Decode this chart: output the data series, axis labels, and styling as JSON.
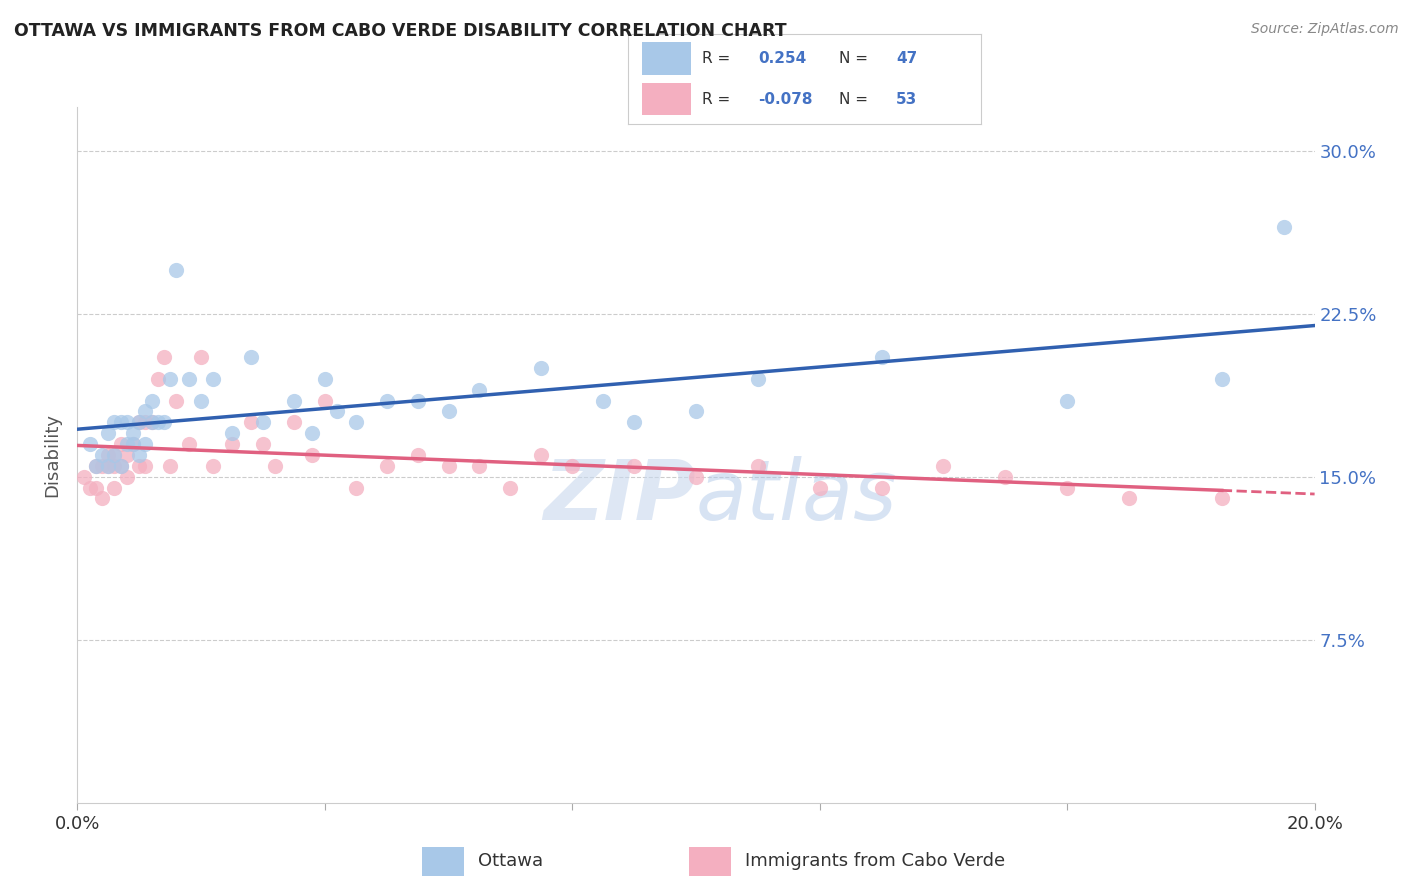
{
  "title": "OTTAWA VS IMMIGRANTS FROM CABO VERDE DISABILITY CORRELATION CHART",
  "source": "Source: ZipAtlas.com",
  "ylabel": "Disability",
  "xlim": [
    0.0,
    0.2
  ],
  "ylim": [
    0.0,
    0.32
  ],
  "yticks": [
    0.075,
    0.15,
    0.225,
    0.3
  ],
  "ytick_labels": [
    "7.5%",
    "15.0%",
    "22.5%",
    "30.0%"
  ],
  "xticks": [
    0.0,
    0.04,
    0.08,
    0.12,
    0.16,
    0.2
  ],
  "ottawa_color": "#a8c8e8",
  "cabo_color": "#f4afc0",
  "trend_ottawa_color": "#3060b0",
  "trend_cabo_color": "#e06080",
  "R_ottawa": 0.254,
  "N_ottawa": 47,
  "R_cabo": -0.078,
  "N_cabo": 53,
  "ottawa_x": [
    0.002,
    0.003,
    0.004,
    0.005,
    0.005,
    0.006,
    0.006,
    0.007,
    0.007,
    0.008,
    0.008,
    0.009,
    0.009,
    0.01,
    0.01,
    0.011,
    0.011,
    0.012,
    0.012,
    0.013,
    0.014,
    0.015,
    0.016,
    0.018,
    0.02,
    0.022,
    0.025,
    0.028,
    0.03,
    0.035,
    0.038,
    0.04,
    0.042,
    0.045,
    0.05,
    0.055,
    0.06,
    0.065,
    0.075,
    0.085,
    0.09,
    0.1,
    0.11,
    0.13,
    0.16,
    0.185,
    0.195
  ],
  "ottawa_y": [
    0.165,
    0.155,
    0.16,
    0.17,
    0.155,
    0.175,
    0.16,
    0.175,
    0.155,
    0.165,
    0.175,
    0.17,
    0.165,
    0.175,
    0.16,
    0.18,
    0.165,
    0.175,
    0.185,
    0.175,
    0.175,
    0.195,
    0.245,
    0.195,
    0.185,
    0.195,
    0.17,
    0.205,
    0.175,
    0.185,
    0.17,
    0.195,
    0.18,
    0.175,
    0.185,
    0.185,
    0.18,
    0.19,
    0.2,
    0.185,
    0.175,
    0.18,
    0.195,
    0.205,
    0.185,
    0.195,
    0.265
  ],
  "cabo_x": [
    0.001,
    0.002,
    0.003,
    0.003,
    0.004,
    0.004,
    0.005,
    0.005,
    0.006,
    0.006,
    0.006,
    0.007,
    0.007,
    0.008,
    0.008,
    0.009,
    0.01,
    0.01,
    0.011,
    0.011,
    0.012,
    0.013,
    0.014,
    0.015,
    0.016,
    0.018,
    0.02,
    0.022,
    0.025,
    0.028,
    0.03,
    0.032,
    0.035,
    0.038,
    0.04,
    0.045,
    0.05,
    0.055,
    0.06,
    0.065,
    0.07,
    0.075,
    0.08,
    0.09,
    0.1,
    0.11,
    0.12,
    0.13,
    0.14,
    0.15,
    0.16,
    0.17,
    0.185
  ],
  "cabo_y": [
    0.15,
    0.145,
    0.155,
    0.145,
    0.155,
    0.14,
    0.155,
    0.16,
    0.145,
    0.155,
    0.16,
    0.165,
    0.155,
    0.16,
    0.15,
    0.165,
    0.155,
    0.175,
    0.175,
    0.155,
    0.175,
    0.195,
    0.205,
    0.155,
    0.185,
    0.165,
    0.205,
    0.155,
    0.165,
    0.175,
    0.165,
    0.155,
    0.175,
    0.16,
    0.185,
    0.145,
    0.155,
    0.16,
    0.155,
    0.155,
    0.145,
    0.16,
    0.155,
    0.155,
    0.15,
    0.155,
    0.145,
    0.145,
    0.155,
    0.15,
    0.145,
    0.14,
    0.14
  ],
  "watermark_zip": "ZIP",
  "watermark_atlas": "atlas",
  "background_color": "#ffffff",
  "grid_color": "#cccccc"
}
